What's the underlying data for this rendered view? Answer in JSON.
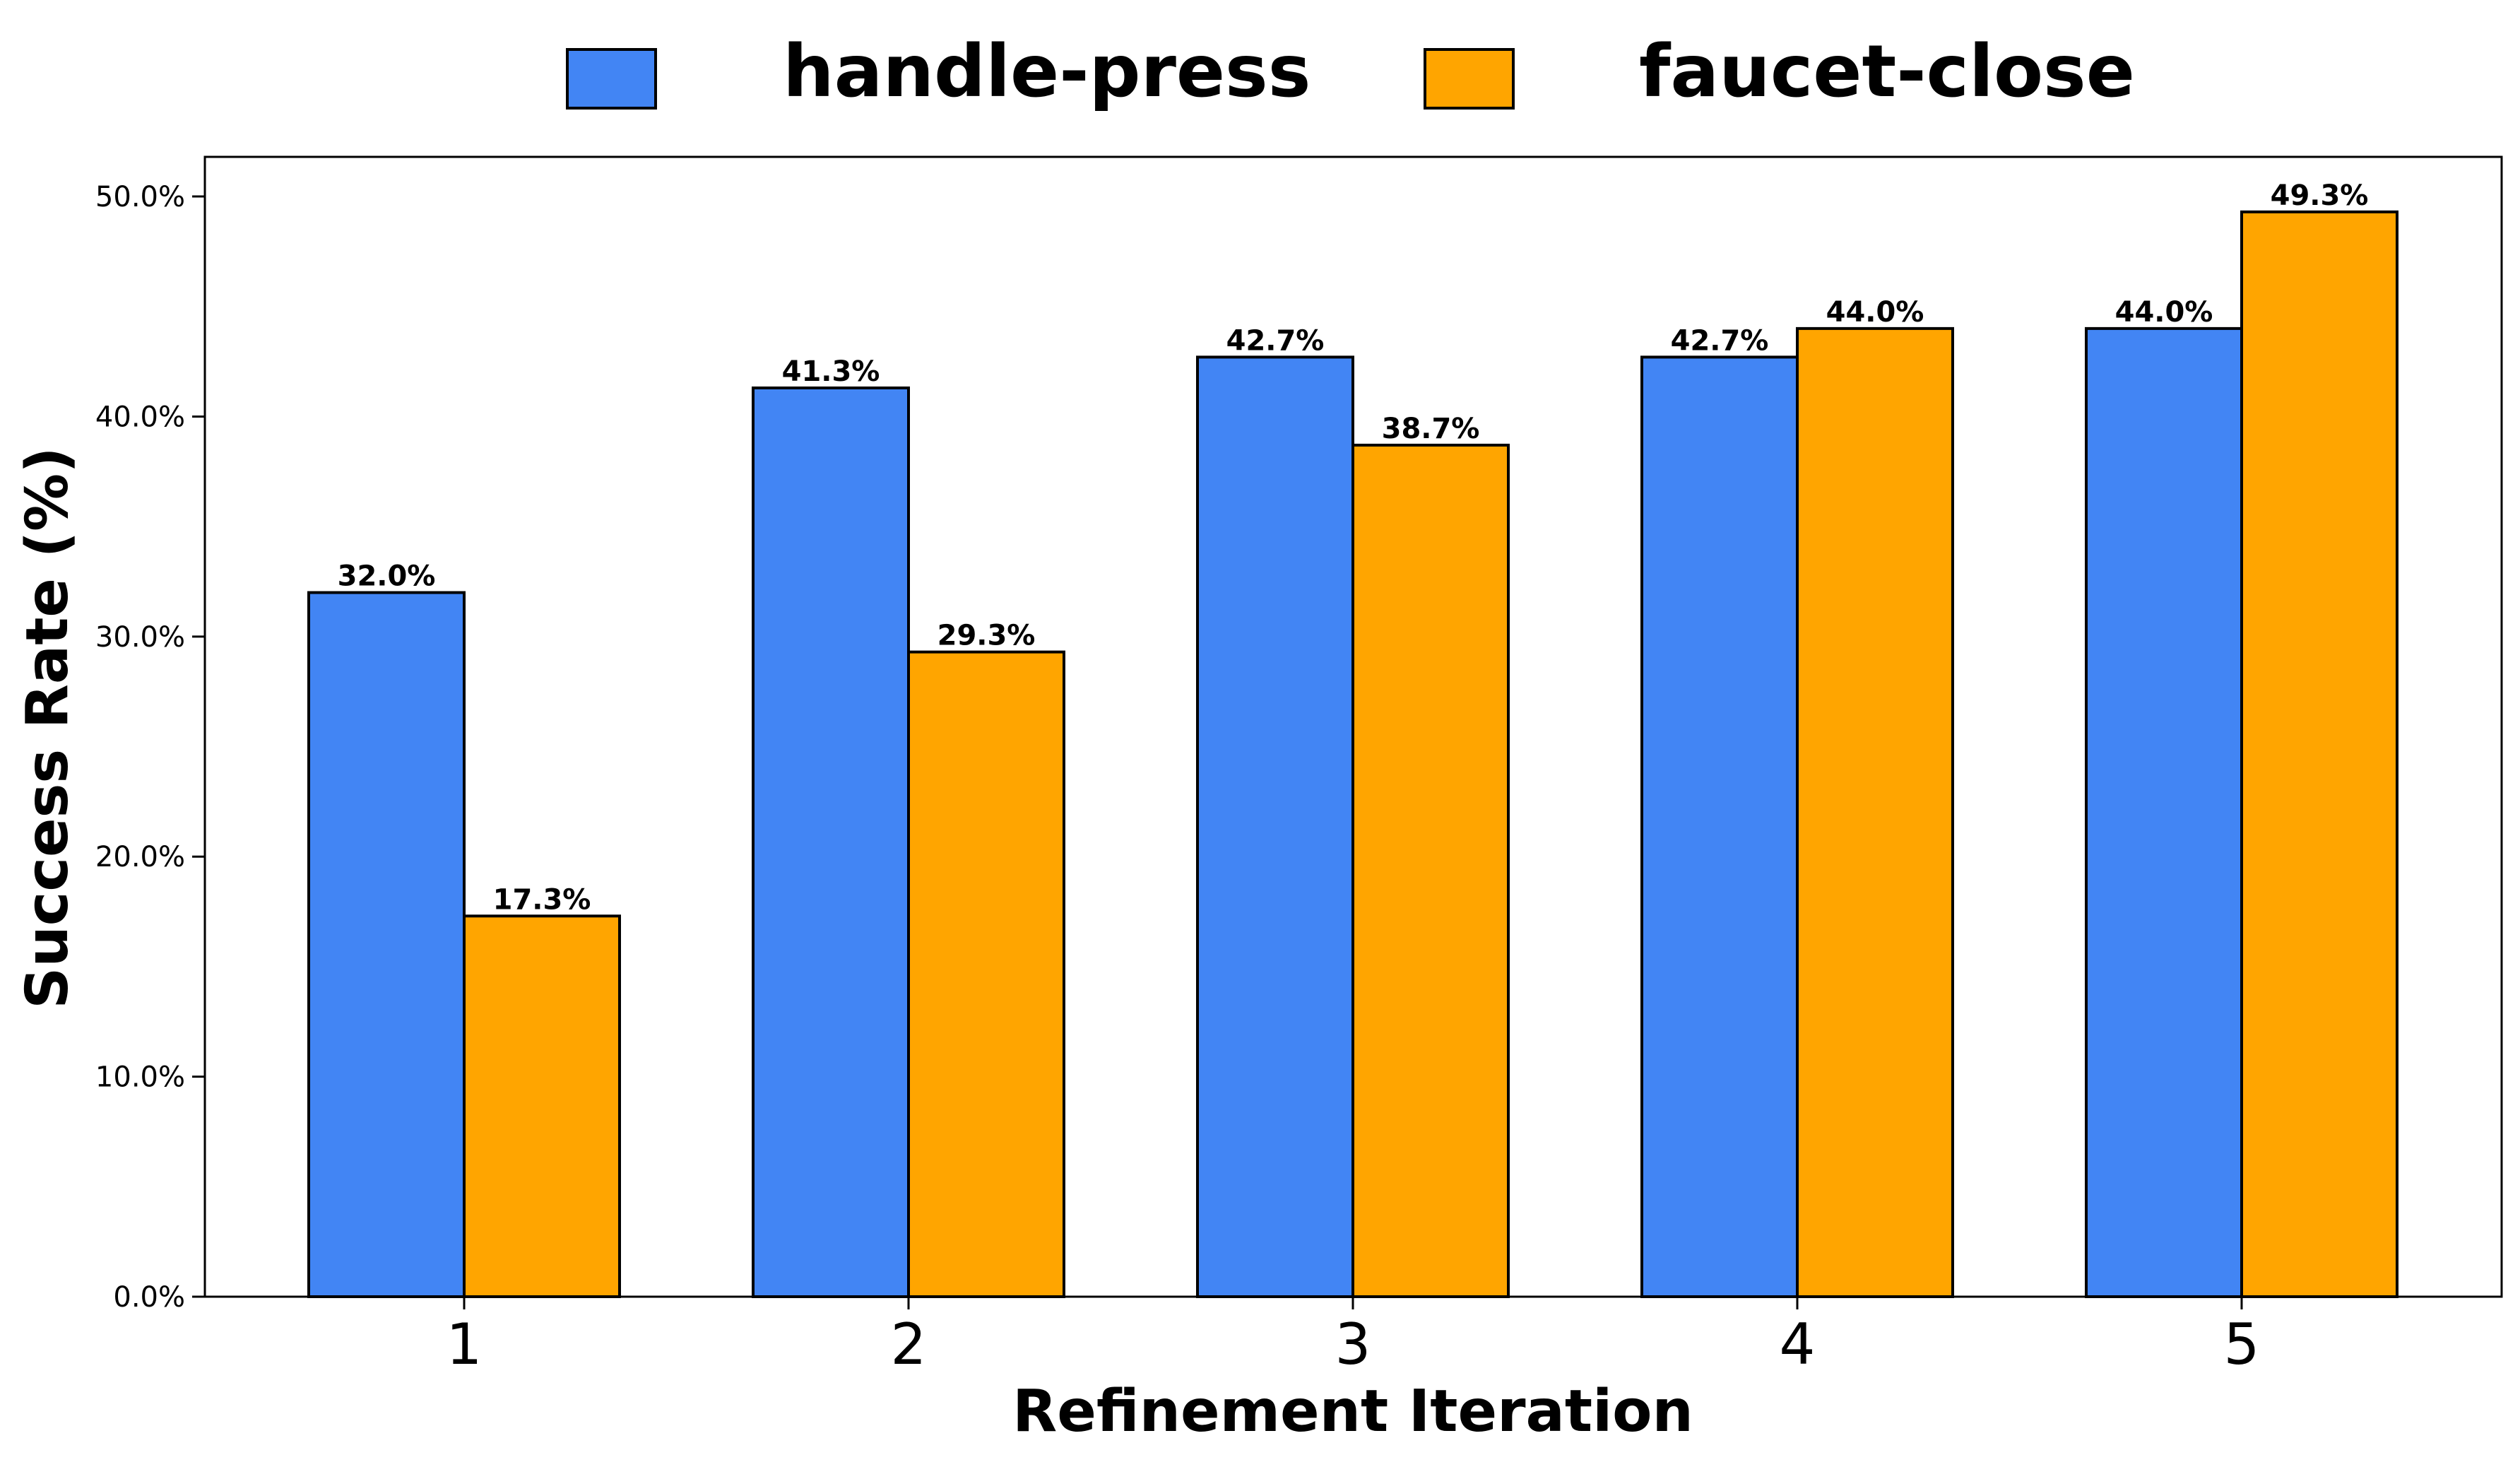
{
  "chart_data": {
    "type": "bar",
    "categories": [
      "1",
      "2",
      "3",
      "4",
      "5"
    ],
    "series": [
      {
        "name": "handle-press",
        "values": [
          32.0,
          41.3,
          42.7,
          42.7,
          44.0
        ],
        "labels": [
          "32.0%",
          "41.3%",
          "42.7%",
          "42.7%",
          "44.0%"
        ],
        "color": "#4285F4"
      },
      {
        "name": "faucet-close",
        "values": [
          17.3,
          29.3,
          38.7,
          44.0,
          49.3
        ],
        "labels": [
          "17.3%",
          "29.3%",
          "38.7%",
          "44.0%",
          "49.3%"
        ],
        "color": "#FFA500"
      }
    ],
    "xlabel": "Refinement Iteration",
    "ylabel": "Success Rate (%)",
    "ylim": [
      0,
      51.8
    ],
    "yticks": [
      0,
      10,
      20,
      30,
      40,
      50
    ],
    "ytick_labels": [
      "0.0%",
      "10.0%",
      "20.0%",
      "30.0%",
      "40.0%",
      "50.0%"
    ],
    "grid": false,
    "legend_position": "top-center, outside plot area",
    "edge_color": "#000000"
  }
}
